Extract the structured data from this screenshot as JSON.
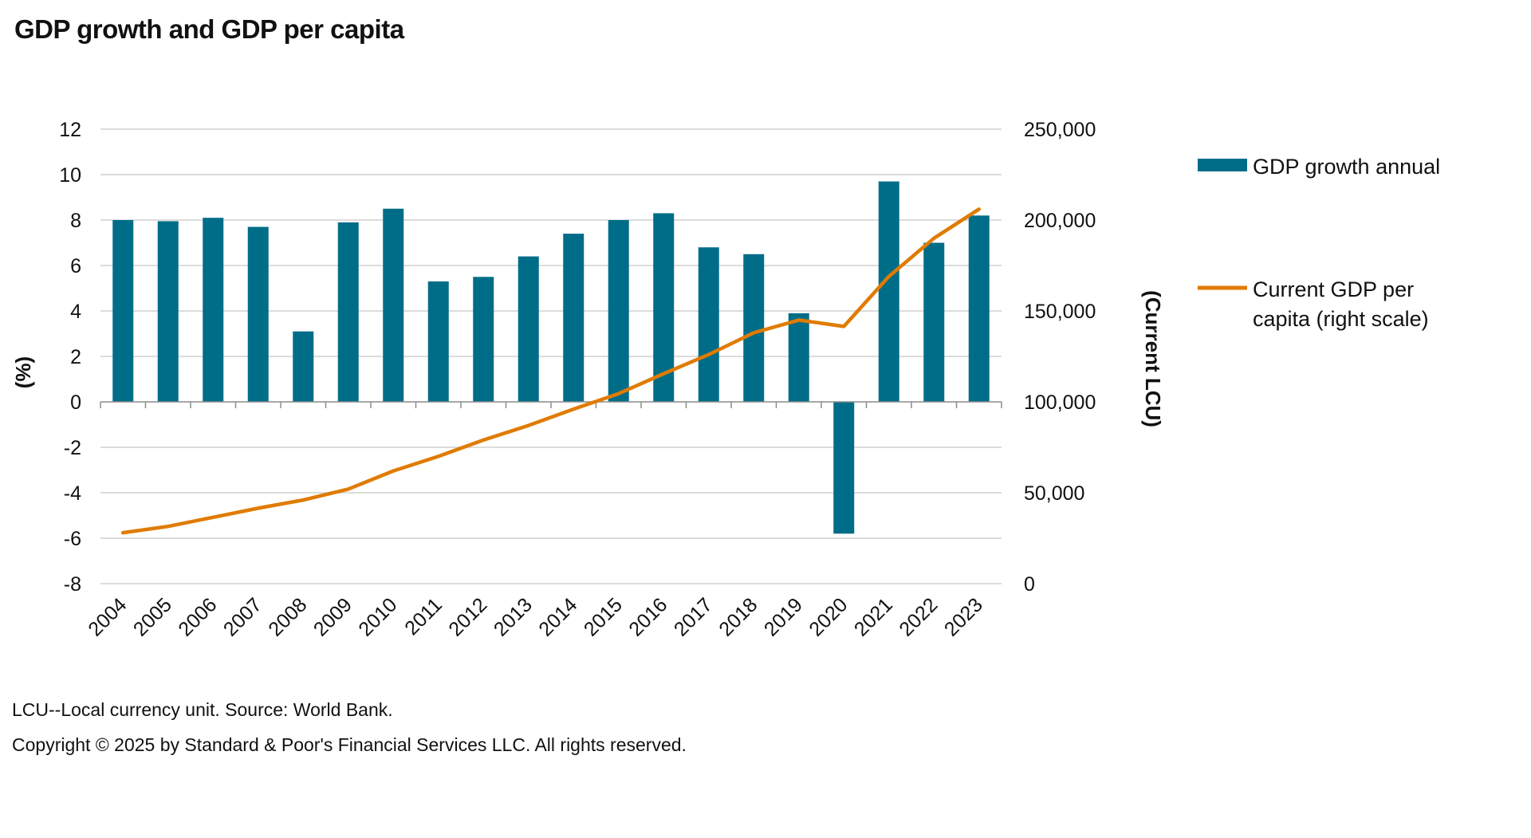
{
  "title": "GDP growth and GDP per capita",
  "footnotes": {
    "source": "LCU--Local currency unit. Source: World Bank.",
    "copyright": "Copyright © 2025 by Standard & Poor's Financial Services LLC. All rights reserved."
  },
  "colors": {
    "bar": "#006D88",
    "line": "#E07B00",
    "grid": "#D0D0D0",
    "axis": "#8C8C8C"
  },
  "chart_data": {
    "type": "bar",
    "title": "GDP growth and GDP per capita",
    "categories": [
      "2004",
      "2005",
      "2006",
      "2007",
      "2008",
      "2009",
      "2010",
      "2011",
      "2012",
      "2013",
      "2014",
      "2015",
      "2016",
      "2017",
      "2018",
      "2019",
      "2020",
      "2021",
      "2022",
      "2023"
    ],
    "series": [
      {
        "name": "GDP growth annual",
        "type": "bar",
        "axis": "left",
        "values": [
          8.0,
          7.95,
          8.1,
          7.7,
          3.1,
          7.9,
          8.5,
          5.3,
          5.5,
          6.4,
          7.4,
          8.0,
          8.3,
          6.8,
          6.5,
          3.9,
          -5.8,
          9.7,
          7.0,
          8.2
        ]
      },
      {
        "name": "Current GDP per capita (right scale)",
        "type": "line",
        "axis": "right",
        "values": [
          28000,
          31500,
          36500,
          41500,
          46000,
          52000,
          62000,
          70000,
          79000,
          87000,
          96000,
          104500,
          115500,
          126000,
          138000,
          145000,
          141500,
          169000,
          190000,
          206000
        ]
      }
    ],
    "y_left": {
      "label": "(%)",
      "range": [
        -8,
        12
      ],
      "ticks": [
        "12",
        "10",
        "8",
        "6",
        "4",
        "2",
        "0",
        "-2",
        "-4",
        "-6",
        "-8"
      ],
      "tick_values": [
        12,
        10,
        8,
        6,
        4,
        2,
        0,
        -2,
        -4,
        -6,
        -8
      ]
    },
    "y_right": {
      "label": "(Current LCU)",
      "range": [
        0,
        250000
      ],
      "ticks": [
        "250,000",
        "200,000",
        "150,000",
        "100,000",
        "50,000",
        "0"
      ],
      "tick_values": [
        250000,
        200000,
        150000,
        100000,
        50000,
        0
      ]
    },
    "xlabel": "",
    "grid": true,
    "legend": {
      "position": "right",
      "entries": [
        {
          "label": "GDP growth annual",
          "kind": "bar"
        },
        {
          "label_line1": "Current GDP per",
          "label_line2": "capita (right scale)",
          "kind": "line"
        }
      ]
    }
  }
}
